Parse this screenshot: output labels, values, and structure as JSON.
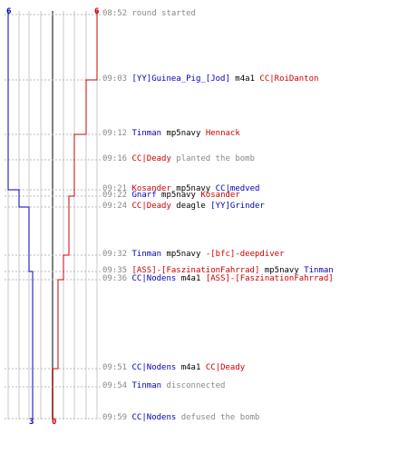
{
  "header": {
    "ct_start": "6",
    "t_start": "6"
  },
  "footer": {
    "ct_end": "3",
    "t_end": "0"
  },
  "colors": {
    "ct": "#0000bb",
    "t": "#cc0000",
    "text": "#888888",
    "grid": "#c8c8c8",
    "axis": "#808080"
  },
  "events": [
    {
      "time": "08:52",
      "parts": [
        {
          "text": "round started",
          "c": "txt"
        }
      ]
    },
    {
      "time": "09:03",
      "parts": [
        {
          "text": "[YY]Guinea_Pig_[Jod]",
          "c": "ct"
        },
        {
          "text": " m4a1 ",
          "c": "act"
        },
        {
          "text": "CC|RoiDanton",
          "c": "tr"
        }
      ]
    },
    {
      "time": "09:12",
      "parts": [
        {
          "text": "Tinman",
          "c": "ct"
        },
        {
          "text": " mp5navy ",
          "c": "act"
        },
        {
          "text": "Hennack",
          "c": "tr"
        }
      ]
    },
    {
      "time": "09:16",
      "parts": [
        {
          "text": "CC|Deady",
          "c": "tr"
        },
        {
          "text": " planted the bomb",
          "c": "txt"
        }
      ]
    },
    {
      "time": "09:21",
      "parts": [
        {
          "text": "Kosander",
          "c": "tr"
        },
        {
          "text": " mp5navy ",
          "c": "act"
        },
        {
          "text": "CC|medved",
          "c": "ct"
        }
      ]
    },
    {
      "time": "09:22",
      "parts": [
        {
          "text": "Gnarf",
          "c": "ct"
        },
        {
          "text": " mp5navy ",
          "c": "act"
        },
        {
          "text": "Kosander",
          "c": "tr"
        }
      ]
    },
    {
      "time": "09:24",
      "parts": [
        {
          "text": "CC|Deady",
          "c": "tr"
        },
        {
          "text": " deagle ",
          "c": "act"
        },
        {
          "text": "[YY]Grinder",
          "c": "ct"
        }
      ]
    },
    {
      "time": "09:32",
      "parts": [
        {
          "text": "Tinman",
          "c": "ct"
        },
        {
          "text": " mp5navy ",
          "c": "act"
        },
        {
          "text": "-[bfc]-deepdiver",
          "c": "tr"
        }
      ]
    },
    {
      "time": "09:35",
      "parts": [
        {
          "text": "[ASS]-[FaszinationFahrrad]",
          "c": "tr"
        },
        {
          "text": " mp5navy ",
          "c": "act"
        },
        {
          "text": "Tinman",
          "c": "ct"
        }
      ]
    },
    {
      "time": "09:36",
      "parts": [
        {
          "text": "CC|Nodens",
          "c": "ct"
        },
        {
          "text": " m4a1 ",
          "c": "act"
        },
        {
          "text": "[ASS]-[FaszinationFahrrad]",
          "c": "tr"
        }
      ]
    },
    {
      "time": "09:51",
      "parts": [
        {
          "text": "CC|Nodens",
          "c": "ct"
        },
        {
          "text": " m4a1 ",
          "c": "act"
        },
        {
          "text": "CC|Deady",
          "c": "tr"
        }
      ]
    },
    {
      "time": "09:54",
      "parts": [
        {
          "text": "Tinman",
          "c": "ct"
        },
        {
          "text": " disconnected",
          "c": "txt"
        }
      ]
    },
    {
      "time": "09:59",
      "parts": [
        {
          "text": "CC|Nodens",
          "c": "ct"
        },
        {
          "text": " defused the bomb",
          "c": "txt"
        }
      ]
    }
  ],
  "chart_data": {
    "type": "line",
    "xlim": [
      0,
      6
    ],
    "ylabel": "",
    "xlabel": "",
    "series": [
      {
        "team": "ct",
        "values": [
          6,
          6,
          6,
          6,
          5,
          5,
          4,
          4,
          3,
          3,
          3,
          3,
          3
        ]
      },
      {
        "team": "t",
        "values": [
          6,
          5,
          4,
          4,
          4,
          3,
          3,
          2,
          2,
          1,
          0,
          0,
          0
        ]
      }
    ]
  }
}
